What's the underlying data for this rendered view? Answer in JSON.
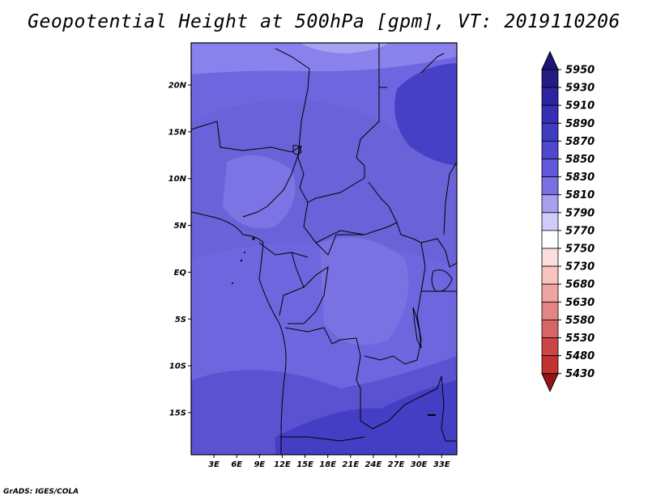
{
  "title": "Geopotential Height at 500hPa [gpm], VT: 2019110206",
  "credit": "GrADS: IGES/COLA",
  "map": {
    "lon_range": [
      0,
      35
    ],
    "lat_range": [
      -19.5,
      24.5
    ],
    "lat_ticks": [
      {
        "value": 20,
        "label": "20N"
      },
      {
        "value": 15,
        "label": "15N"
      },
      {
        "value": 10,
        "label": "10N"
      },
      {
        "value": 5,
        "label": "5N"
      },
      {
        "value": 0,
        "label": "EQ"
      },
      {
        "value": -5,
        "label": "5S"
      },
      {
        "value": -10,
        "label": "10S"
      },
      {
        "value": -15,
        "label": "15S"
      }
    ],
    "lon_ticks": [
      {
        "value": 3,
        "label": "3E"
      },
      {
        "value": 6,
        "label": "6E"
      },
      {
        "value": 9,
        "label": "9E"
      },
      {
        "value": 12,
        "label": "12E"
      },
      {
        "value": 15,
        "label": "15E"
      },
      {
        "value": 18,
        "label": "18E"
      },
      {
        "value": 21,
        "label": "21E"
      },
      {
        "value": 24,
        "label": "24E"
      },
      {
        "value": 27,
        "label": "27E"
      },
      {
        "value": 30,
        "label": "30E"
      },
      {
        "value": 33,
        "label": "33E"
      }
    ]
  },
  "colorbar": {
    "levels": [
      "5950",
      "5930",
      "5910",
      "5890",
      "5870",
      "5850",
      "5830",
      "5810",
      "5790",
      "5770",
      "5750",
      "5730",
      "5680",
      "5630",
      "5580",
      "5530",
      "5480",
      "5430"
    ],
    "colors": [
      "#241c80",
      "#2c24a0",
      "#3530b4",
      "#3f3cc0",
      "#5048cc",
      "#6058d8",
      "#7a70e4",
      "#a6a0ee",
      "#cfcdf8",
      "#ffffff",
      "#fcdedc",
      "#f8c4c0",
      "#f0a4a0",
      "#e48484",
      "#d86464",
      "#cc4646",
      "#c23232",
      "#a81e1e"
    ],
    "top_cap_color": "#1c1678",
    "bottom_cap_color": "#961414"
  },
  "legend_colors": {
    "coast": "#000000",
    "background_field": "#6e66de"
  }
}
